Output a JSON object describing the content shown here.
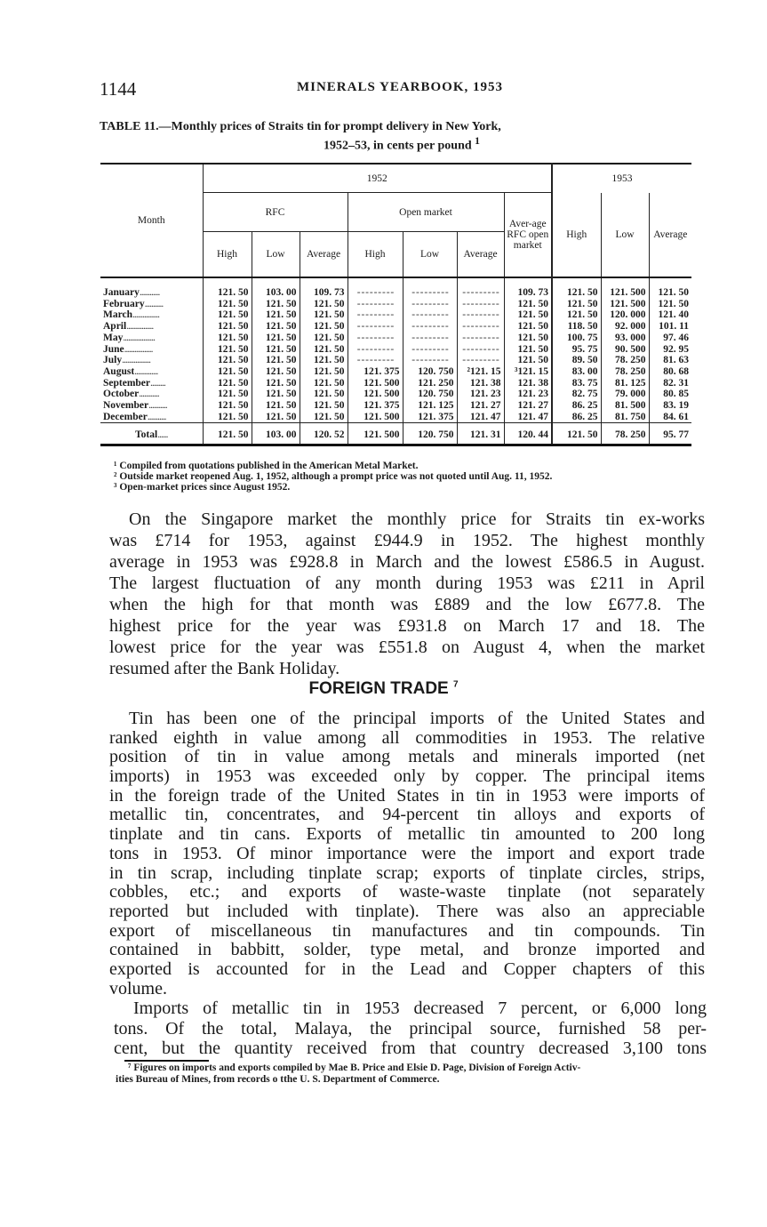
{
  "header": {
    "page_number": "1144",
    "running_title": "MINERALS YEARBOOK, 1953"
  },
  "table": {
    "title_line1": "TABLE 11.—Monthly prices of Straits tin for prompt delivery in New York,",
    "title_line2": "1952–53, in cents per pound",
    "title_fn": "1",
    "headers": {
      "month": "Month",
      "y1952": "1952",
      "y1953": "1953",
      "rfc": "RFC",
      "open_market": "Open market",
      "avg_rfc_open": "Aver-age RFC open market",
      "high": "High",
      "low": "Low",
      "average": "Average"
    },
    "rows": [
      {
        "month": "January",
        "rfc": [
          "121. 50",
          "103. 00",
          "109. 73"
        ],
        "open": [
          "",
          "",
          ""
        ],
        "avg_rfc_open": "109. 73",
        "y1953": [
          "121. 50",
          "121. 500",
          "121. 50"
        ]
      },
      {
        "month": "February",
        "rfc": [
          "121. 50",
          "121. 50",
          "121. 50"
        ],
        "open": [
          "",
          "",
          ""
        ],
        "avg_rfc_open": "121. 50",
        "y1953": [
          "121. 50",
          "121. 500",
          "121. 50"
        ]
      },
      {
        "month": "March",
        "rfc": [
          "121. 50",
          "121. 50",
          "121. 50"
        ],
        "open": [
          "",
          "",
          ""
        ],
        "avg_rfc_open": "121. 50",
        "y1953": [
          "121. 50",
          "120. 000",
          "121. 40"
        ]
      },
      {
        "month": "April",
        "rfc": [
          "121. 50",
          "121. 50",
          "121. 50"
        ],
        "open": [
          "",
          "",
          ""
        ],
        "avg_rfc_open": "121. 50",
        "y1953": [
          "118. 50",
          "92. 000",
          "101. 11"
        ]
      },
      {
        "month": "May",
        "rfc": [
          "121. 50",
          "121. 50",
          "121. 50"
        ],
        "open": [
          "",
          "",
          ""
        ],
        "avg_rfc_open": "121. 50",
        "y1953": [
          "100. 75",
          "93. 000",
          "97. 46"
        ]
      },
      {
        "month": "June",
        "rfc": [
          "121. 50",
          "121. 50",
          "121. 50"
        ],
        "open": [
          "",
          "",
          ""
        ],
        "avg_rfc_open": "121. 50",
        "y1953": [
          "95. 75",
          "90. 500",
          "92. 95"
        ]
      },
      {
        "month": "July",
        "rfc": [
          "121. 50",
          "121. 50",
          "121. 50"
        ],
        "open": [
          "",
          "",
          ""
        ],
        "avg_rfc_open": "121. 50",
        "y1953": [
          "89. 50",
          "78. 250",
          "81. 63"
        ]
      },
      {
        "month": "August",
        "rfc": [
          "121. 50",
          "121. 50",
          "121. 50"
        ],
        "open": [
          "121. 375",
          "120. 750",
          "²121. 15"
        ],
        "avg_rfc_open": "³121. 15",
        "y1953": [
          "83. 00",
          "78. 250",
          "80. 68"
        ]
      },
      {
        "month": "September",
        "rfc": [
          "121. 50",
          "121. 50",
          "121. 50"
        ],
        "open": [
          "121. 500",
          "121. 250",
          "121. 38"
        ],
        "avg_rfc_open": "121. 38",
        "y1953": [
          "83. 75",
          "81. 125",
          "82. 31"
        ]
      },
      {
        "month": "October",
        "rfc": [
          "121. 50",
          "121. 50",
          "121. 50"
        ],
        "open": [
          "121. 500",
          "120. 750",
          "121. 23"
        ],
        "avg_rfc_open": "121. 23",
        "y1953": [
          "82. 75",
          "79. 000",
          "80. 85"
        ]
      },
      {
        "month": "November",
        "rfc": [
          "121. 50",
          "121. 50",
          "121. 50"
        ],
        "open": [
          "121. 375",
          "121. 125",
          "121. 27"
        ],
        "avg_rfc_open": "121. 27",
        "y1953": [
          "86. 25",
          "81. 500",
          "83. 19"
        ]
      },
      {
        "month": "December",
        "rfc": [
          "121. 50",
          "121. 50",
          "121. 50"
        ],
        "open": [
          "121. 500",
          "121. 375",
          "121. 47"
        ],
        "avg_rfc_open": "121. 47",
        "y1953": [
          "86. 25",
          "81. 750",
          "84. 61"
        ]
      }
    ],
    "total": {
      "month": "Total",
      "rfc": [
        "121. 50",
        "103. 00",
        "120. 52"
      ],
      "open": [
        "121. 500",
        "120. 750",
        "121. 31"
      ],
      "avg_rfc_open": "120. 44",
      "y1953": [
        "121. 50",
        "78. 250",
        "95. 77"
      ]
    },
    "footnotes": [
      "¹ Compiled from quotations published in the American Metal Market.",
      "² Outside market reopened Aug. 1, 1952, although a prompt price was not quoted until Aug. 11, 1952.",
      "³ Open-market prices since August 1952."
    ]
  },
  "paragraph1": [
    "On the Singapore market the monthly price for Straits tin ex-works",
    "was £714 for 1953, against £944.9 in 1952.  The highest monthly",
    "average in 1953 was £928.8 in March and the lowest £586.5 in August.",
    "The largest fluctuation of any month during 1953 was £211 in April",
    "when the high for that month was £889 and the low £677.8.  The",
    "highest price for the year was £931.8 on March 17 and 18.  The",
    "lowest price for the year was £551.8 on August 4, when the market",
    "resumed after the Bank Holiday."
  ],
  "section": {
    "heading": "FOREIGN TRADE",
    "heading_fn": "7"
  },
  "paragraph2": [
    "Tin has been one of the principal imports of the United States and",
    "ranked eighth in value among all commodities in 1953.  The relative",
    "position of tin in value among metals and minerals imported (net",
    "imports) in 1953 was exceeded only by copper.  The principal items",
    "in the foreign trade of the United States in tin in 1953 were imports of",
    "metallic tin, concentrates, and 94-percent tin alloys and exports of",
    "tinplate and tin cans.  Exports of metallic tin amounted to 200 long",
    "tons in 1953.  Of minor importance were the import and export trade",
    "in tin scrap, including tinplate scrap; exports of tinplate circles, strips,",
    "cobbles, etc.; and exports of waste-waste tinplate (not separately",
    "reported but included with tinplate).  There was also an appreciable",
    "export of miscellaneous tin manufactures and tin compounds.  Tin",
    "contained in babbitt, solder, type metal, and bronze imported and",
    "exported is accounted for in the Lead and Copper chapters of this",
    "volume."
  ],
  "paragraph3": [
    "Imports of metallic tin in 1953 decreased 7 percent, or 6,000 long",
    "tons.  Of the total, Malaya, the principal source, furnished 58 per-",
    "cent, but the quantity received from that country decreased 3,100 tons"
  ],
  "footnote7": [
    "⁷ Figures on imports and exports compiled by Mae B. Price and Elsie D. Page, Division of Foreign Activ-",
    "ities Bureau of Mines, from records o tthe U. S. Department of Commerce."
  ]
}
